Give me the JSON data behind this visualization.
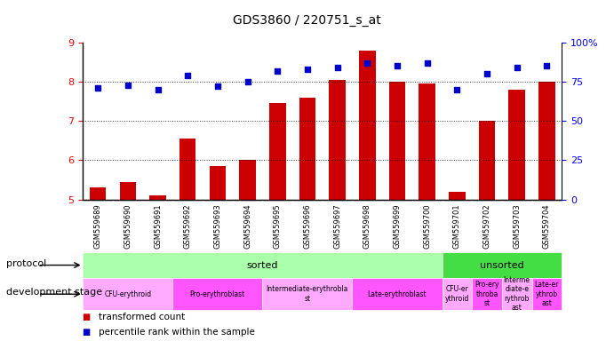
{
  "title": "GDS3860 / 220751_s_at",
  "samples": [
    "GSM559689",
    "GSM559690",
    "GSM559691",
    "GSM559692",
    "GSM559693",
    "GSM559694",
    "GSM559695",
    "GSM559696",
    "GSM559697",
    "GSM559698",
    "GSM559699",
    "GSM559700",
    "GSM559701",
    "GSM559702",
    "GSM559703",
    "GSM559704"
  ],
  "transformed_count": [
    5.3,
    5.45,
    5.1,
    6.55,
    5.85,
    6.0,
    7.45,
    7.6,
    8.05,
    8.8,
    8.0,
    7.95,
    5.2,
    7.0,
    7.8,
    8.0
  ],
  "percentile_rank": [
    71,
    73,
    70,
    79,
    72,
    75,
    82,
    83,
    84,
    87,
    85,
    87,
    70,
    80,
    84,
    85
  ],
  "bar_bottom": 5.0,
  "ylim_left": [
    5,
    9
  ],
  "ylim_right": [
    0,
    100
  ],
  "yticks_left": [
    5,
    6,
    7,
    8,
    9
  ],
  "yticks_right": [
    0,
    25,
    50,
    75,
    100
  ],
  "bar_color": "#cc0000",
  "dot_color": "#0000cc",
  "bg_color": "#ffffff",
  "xticklabel_bg": "#d0d0d0",
  "protocol_row": [
    {
      "label": "sorted",
      "start": 0,
      "end": 11,
      "color": "#aaffaa"
    },
    {
      "label": "unsorted",
      "start": 12,
      "end": 15,
      "color": "#44dd44"
    }
  ],
  "dev_stage_row": [
    {
      "label": "CFU-erythroid",
      "start": 0,
      "end": 2,
      "color": "#ffaaff"
    },
    {
      "label": "Pro-erythroblast",
      "start": 3,
      "end": 5,
      "color": "#ff55ff"
    },
    {
      "label": "Intermediate-erythrobla\nst",
      "start": 6,
      "end": 8,
      "color": "#ffaaff"
    },
    {
      "label": "Late-erythroblast",
      "start": 9,
      "end": 11,
      "color": "#ff55ff"
    },
    {
      "label": "CFU-er\nythroid",
      "start": 12,
      "end": 12,
      "color": "#ffaaff"
    },
    {
      "label": "Pro-ery\nthroba\nst",
      "start": 13,
      "end": 13,
      "color": "#ff55ff"
    },
    {
      "label": "Interme\ndiate-e\nrythrob\nast",
      "start": 14,
      "end": 14,
      "color": "#ffaaff"
    },
    {
      "label": "Late-er\nythrob\nast",
      "start": 15,
      "end": 15,
      "color": "#ff55ff"
    }
  ]
}
